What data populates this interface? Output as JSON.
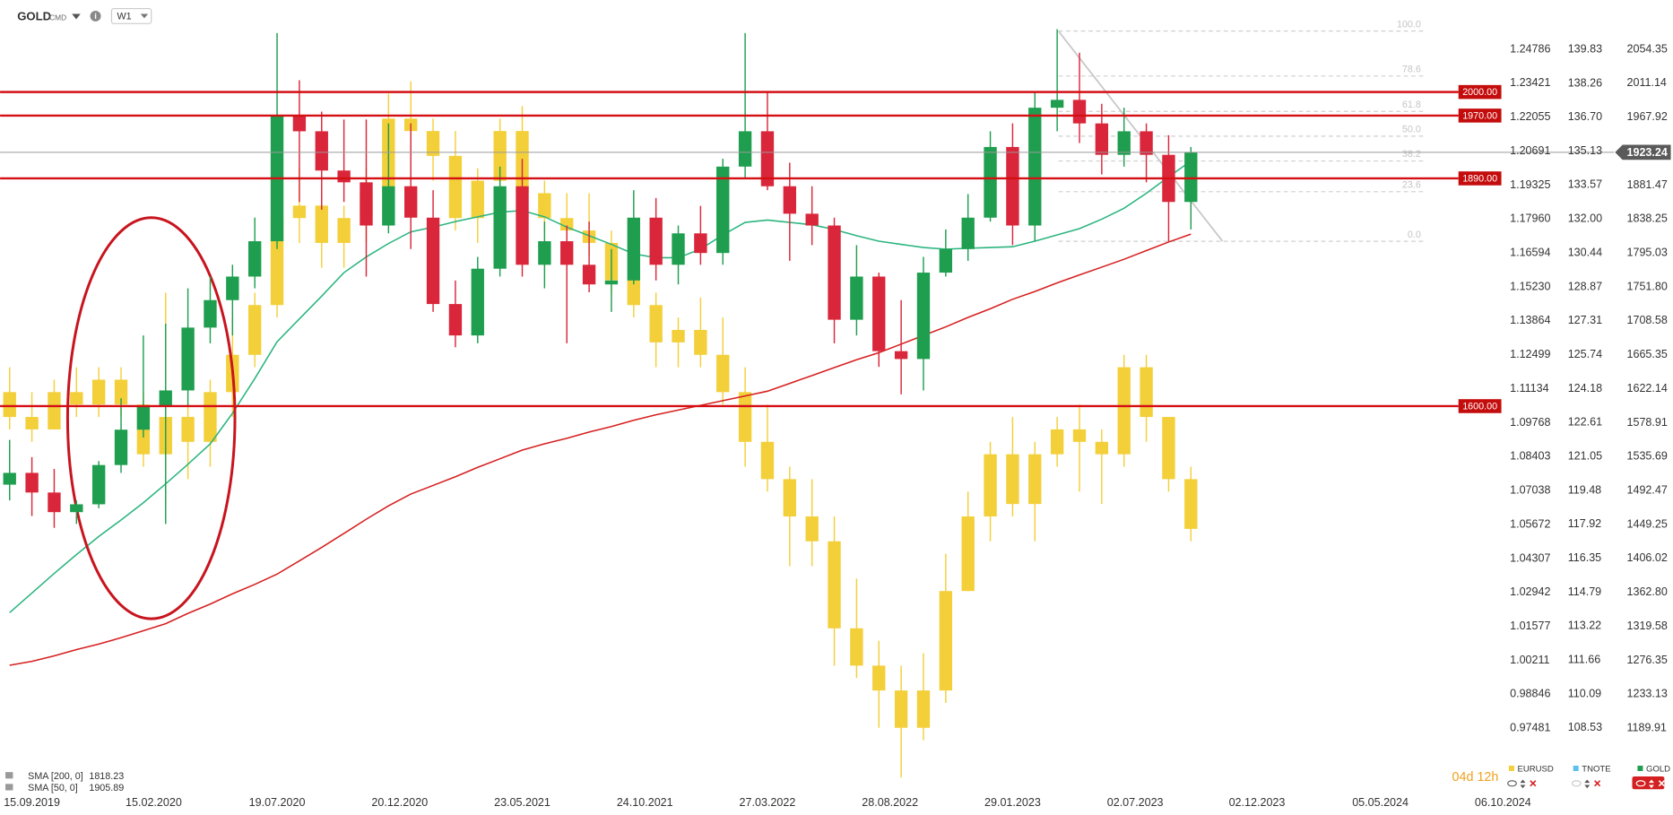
{
  "chart_data": {
    "type": "candlestick",
    "instrument": "GOLD",
    "instrument_type": "CMD",
    "interval": "W1",
    "countdown": "04d 12h",
    "x": [
      "2019-08-18",
      "2019-09-15",
      "2019-10-13",
      "2019-11-10",
      "2019-12-08",
      "2020-01-05",
      "2020-02-02",
      "2020-03-01",
      "2020-03-29",
      "2020-04-26",
      "2020-05-24",
      "2020-06-21",
      "2020-07-19",
      "2020-08-16",
      "2020-09-13",
      "2020-10-11",
      "2020-11-08",
      "2020-12-06",
      "2021-01-03",
      "2021-01-31",
      "2021-02-28",
      "2021-03-28",
      "2021-04-25",
      "2021-05-23",
      "2021-06-20",
      "2021-07-18",
      "2021-08-15",
      "2021-09-12",
      "2021-10-10",
      "2021-11-07",
      "2021-12-05",
      "2022-01-02",
      "2022-01-30",
      "2022-02-27",
      "2022-03-27",
      "2022-04-24",
      "2022-05-22",
      "2022-06-19",
      "2022-07-17",
      "2022-08-14",
      "2022-09-11",
      "2022-10-09",
      "2022-11-06",
      "2022-12-04",
      "2023-01-01",
      "2023-01-29",
      "2023-02-26",
      "2023-03-26",
      "2023-04-23",
      "2023-05-21",
      "2023-06-18",
      "2023-07-16",
      "2023-08-13",
      "2023-09-10"
    ],
    "xlim": [
      "2019-08-06",
      "2024-10-04"
    ],
    "xticks": [
      {
        "value": "2019-09-15",
        "label": "15.09.2019"
      },
      {
        "value": "2020-02-15",
        "label": "15.02.2020"
      },
      {
        "value": "2020-07-19",
        "label": "19.07.2020"
      },
      {
        "value": "2020-12-20",
        "label": "20.12.2020"
      },
      {
        "value": "2021-05-23",
        "label": "23.05.2021"
      },
      {
        "value": "2021-10-24",
        "label": "24.10.2021"
      },
      {
        "value": "2022-03-27",
        "label": "27.03.2022"
      },
      {
        "value": "2022-08-28",
        "label": "28.08.2022"
      },
      {
        "value": "2023-01-29",
        "label": "29.01.2023"
      },
      {
        "value": "2023-07-02",
        "label": "02.07.2023"
      },
      {
        "value": "2023-12-02",
        "label": "02.12.2023"
      },
      {
        "value": "2024-05-05",
        "label": "05.05.2024"
      },
      {
        "value": "2024-10-06",
        "label": "06.10.2024"
      }
    ],
    "series": [
      {
        "name": "EURUSD",
        "color": "#f3cf3a",
        "visible": true,
        "ylim": [
          0.94855,
          1.26554
        ],
        "yticks": [
          1.24786,
          1.23421,
          1.22055,
          1.20691,
          1.19325,
          {
            "value": 1.1796,
            "label": "1.17960"
          },
          1.16594,
          {
            "value": 1.1523,
            "label": "1.15230"
          },
          1.13864,
          1.12499,
          1.11134,
          1.09768,
          1.08403,
          1.07038,
          1.05672,
          1.04307,
          1.02942,
          1.01577,
          1.00211,
          0.98846,
          0.97481
        ],
        "ohlc": [
          [
            1.11,
            1.12,
            1.095,
            1.1
          ],
          [
            1.1,
            1.11,
            1.09,
            1.095
          ],
          [
            1.095,
            1.115,
            1.095,
            1.11
          ],
          [
            1.11,
            1.12,
            1.1,
            1.105
          ],
          [
            1.105,
            1.12,
            1.1,
            1.115
          ],
          [
            1.115,
            1.12,
            1.1,
            1.105
          ],
          [
            1.105,
            1.11,
            1.08,
            1.085
          ],
          [
            1.085,
            1.15,
            1.065,
            1.1
          ],
          [
            1.1,
            1.105,
            1.075,
            1.09
          ],
          [
            1.09,
            1.115,
            1.08,
            1.11
          ],
          [
            1.11,
            1.14,
            1.1,
            1.125
          ],
          [
            1.125,
            1.15,
            1.12,
            1.145
          ],
          [
            1.145,
            1.19,
            1.14,
            1.18
          ],
          [
            1.18,
            1.2,
            1.17,
            1.185
          ],
          [
            1.185,
            1.19,
            1.16,
            1.17
          ],
          [
            1.17,
            1.185,
            1.16,
            1.18
          ],
          [
            1.18,
            1.2,
            1.17,
            1.19
          ],
          [
            1.19,
            1.23,
            1.185,
            1.22
          ],
          [
            1.22,
            1.235,
            1.205,
            1.215
          ],
          [
            1.215,
            1.22,
            1.195,
            1.205
          ],
          [
            1.205,
            1.215,
            1.175,
            1.18
          ],
          [
            1.18,
            1.2,
            1.17,
            1.195
          ],
          [
            1.195,
            1.22,
            1.19,
            1.215
          ],
          [
            1.215,
            1.225,
            1.185,
            1.19
          ],
          [
            1.19,
            1.195,
            1.175,
            1.18
          ],
          [
            1.18,
            1.19,
            1.17,
            1.175
          ],
          [
            1.175,
            1.19,
            1.165,
            1.17
          ],
          [
            1.17,
            1.175,
            1.15,
            1.155
          ],
          [
            1.155,
            1.165,
            1.14,
            1.145
          ],
          [
            1.145,
            1.15,
            1.12,
            1.13
          ],
          [
            1.13,
            1.14,
            1.12,
            1.135
          ],
          [
            1.135,
            1.148,
            1.12,
            1.125
          ],
          [
            1.125,
            1.14,
            1.105,
            1.11
          ],
          [
            1.11,
            1.12,
            1.08,
            1.09
          ],
          [
            1.09,
            1.105,
            1.07,
            1.075
          ],
          [
            1.075,
            1.08,
            1.04,
            1.06
          ],
          [
            1.06,
            1.075,
            1.04,
            1.05
          ],
          [
            1.05,
            1.06,
            1.0,
            1.015
          ],
          [
            1.015,
            1.035,
            0.995,
            1.0
          ],
          [
            1.0,
            1.01,
            0.975,
            0.99
          ],
          [
            0.99,
            1.0,
            0.955,
            0.975
          ],
          [
            0.975,
            1.005,
            0.97,
            0.99
          ],
          [
            0.99,
            1.045,
            0.985,
            1.03
          ],
          [
            1.03,
            1.07,
            1.03,
            1.06
          ],
          [
            1.06,
            1.09,
            1.05,
            1.085
          ],
          [
            1.085,
            1.1,
            1.06,
            1.065
          ],
          [
            1.065,
            1.09,
            1.05,
            1.085
          ],
          [
            1.085,
            1.1,
            1.08,
            1.095
          ],
          [
            1.095,
            1.105,
            1.07,
            1.09
          ],
          [
            1.09,
            1.095,
            1.065,
            1.085
          ],
          [
            1.085,
            1.125,
            1.08,
            1.12
          ],
          [
            1.12,
            1.125,
            1.09,
            1.1
          ],
          [
            1.1,
            1.1,
            1.07,
            1.075
          ],
          [
            1.075,
            1.08,
            1.05,
            1.055
          ]
        ]
      },
      {
        "name": "TNOTE",
        "color": "#5bc0eb",
        "visible": false,
        "ylim": [
          105.5,
          141.86
        ],
        "yticks": [
          139.83,
          138.26,
          {
            "value": 136.7,
            "label": "136.70"
          },
          135.13,
          133.57,
          {
            "value": 132,
            "label": "132.00"
          },
          130.44,
          128.87,
          127.31,
          125.74,
          124.18,
          122.61,
          121.05,
          119.48,
          117.92,
          116.35,
          114.79,
          113.22,
          111.66,
          110.09,
          108.53
        ]
      },
      {
        "name": "GOLD",
        "color": "#1e9e4e",
        "up_color": "#1e9e4e",
        "down_color": "#d9263a",
        "visible": true,
        "ylim": [
          1106.65,
          2110.34
        ],
        "yticks": [
          2054.35,
          2011.14,
          1967.92,
          1881.47,
          1838.25,
          1795.03,
          {
            "value": 1751.8,
            "label": "1751.80"
          },
          1708.58,
          1665.35,
          1622.14,
          1578.91,
          1535.69,
          1492.47,
          1449.25,
          1406.02,
          {
            "value": 1362.8,
            "label": "1362.80"
          },
          1319.58,
          1276.35,
          1233.13,
          1189.91
        ],
        "last_price": 1923.24,
        "ohlc": [
          [
            1500,
            1557,
            1480,
            1515
          ],
          [
            1515,
            1535,
            1460,
            1490
          ],
          [
            1490,
            1520,
            1445,
            1465
          ],
          [
            1465,
            1480,
            1450,
            1475
          ],
          [
            1475,
            1530,
            1470,
            1525
          ],
          [
            1525,
            1610,
            1515,
            1570
          ],
          [
            1570,
            1690,
            1560,
            1600
          ],
          [
            1600,
            1705,
            1450,
            1620
          ],
          [
            1620,
            1750,
            1600,
            1700
          ],
          [
            1700,
            1765,
            1680,
            1735
          ],
          [
            1735,
            1780,
            1690,
            1765
          ],
          [
            1765,
            1840,
            1750,
            1810
          ],
          [
            1810,
            2075,
            1800,
            1970
          ],
          [
            1970,
            2015,
            1860,
            1950
          ],
          [
            1950,
            1975,
            1850,
            1900
          ],
          [
            1900,
            1965,
            1860,
            1885
          ],
          [
            1885,
            1965,
            1765,
            1830
          ],
          [
            1830,
            1960,
            1820,
            1880
          ],
          [
            1880,
            1960,
            1800,
            1840
          ],
          [
            1840,
            1875,
            1720,
            1730
          ],
          [
            1730,
            1760,
            1675,
            1690
          ],
          [
            1690,
            1790,
            1680,
            1775
          ],
          [
            1775,
            1905,
            1765,
            1880
          ],
          [
            1880,
            1915,
            1765,
            1780
          ],
          [
            1780,
            1835,
            1750,
            1810
          ],
          [
            1810,
            1830,
            1680,
            1780
          ],
          [
            1780,
            1835,
            1745,
            1755
          ],
          [
            1755,
            1800,
            1720,
            1760
          ],
          [
            1760,
            1875,
            1755,
            1840
          ],
          [
            1840,
            1865,
            1760,
            1780
          ],
          [
            1780,
            1830,
            1755,
            1820
          ],
          [
            1820,
            1855,
            1780,
            1795
          ],
          [
            1795,
            1915,
            1780,
            1905
          ],
          [
            1905,
            2075,
            1890,
            1950
          ],
          [
            1950,
            2000,
            1875,
            1880
          ],
          [
            1880,
            1910,
            1785,
            1845
          ],
          [
            1845,
            1880,
            1805,
            1830
          ],
          [
            1830,
            1840,
            1680,
            1710
          ],
          [
            1710,
            1805,
            1690,
            1765
          ],
          [
            1765,
            1770,
            1650,
            1670
          ],
          [
            1670,
            1735,
            1615,
            1660
          ],
          [
            1660,
            1790,
            1620,
            1770
          ],
          [
            1770,
            1825,
            1765,
            1800
          ],
          [
            1800,
            1870,
            1785,
            1840
          ],
          [
            1840,
            1950,
            1835,
            1930
          ],
          [
            1930,
            1960,
            1805,
            1830
          ],
          [
            1830,
            2000,
            1810,
            1980
          ],
          [
            1980,
            2080,
            1950,
            1990
          ],
          [
            1990,
            2050,
            1935,
            1960
          ],
          [
            1960,
            1985,
            1895,
            1920
          ],
          [
            1920,
            1980,
            1905,
            1950
          ],
          [
            1950,
            1960,
            1885,
            1920
          ],
          [
            1920,
            1945,
            1810,
            1860
          ],
          [
            1860,
            1930,
            1825,
            1923.24
          ]
        ]
      }
    ],
    "indicators": [
      {
        "name": "SMA [200, 0]",
        "last": 1818.23,
        "color": "#d62020",
        "values": [
          1270,
          1275,
          1282,
          1290,
          1297,
          1305,
          1314,
          1323,
          1336,
          1348,
          1361,
          1373,
          1386,
          1403,
          1420,
          1438,
          1456,
          1473,
          1488,
          1499,
          1510,
          1522,
          1533,
          1544,
          1552,
          1559,
          1567,
          1574,
          1582,
          1589,
          1595,
          1601,
          1607,
          1613,
          1619,
          1629,
          1639,
          1649,
          1659,
          1668,
          1679,
          1690,
          1701,
          1713,
          1724,
          1736,
          1746,
          1757,
          1767,
          1777,
          1787,
          1798,
          1809,
          1819
        ]
      },
      {
        "name": "SMA [50, 0]",
        "last": 1905.89,
        "color": "#2bb57f",
        "values": [
          1337,
          1362,
          1387,
          1411,
          1434,
          1455,
          1477,
          1501,
          1526,
          1552,
          1591,
          1635,
          1682,
          1711,
          1740,
          1770,
          1790,
          1807,
          1822,
          1828,
          1835,
          1841,
          1847,
          1849,
          1841,
          1828,
          1817,
          1806,
          1794,
          1789,
          1789,
          1800,
          1818,
          1834,
          1837,
          1834,
          1831,
          1825,
          1817,
          1810,
          1806,
          1802,
          1800,
          1801,
          1802,
          1803,
          1810,
          1818,
          1826,
          1838,
          1852,
          1871,
          1892,
          1912
        ]
      }
    ],
    "levels": [
      {
        "value": 2000,
        "label": "2000.00"
      },
      {
        "value": 1970,
        "label": "1970.00"
      },
      {
        "value": 1890,
        "label": "1890.00"
      },
      {
        "value": 1600,
        "label": "1600.00"
      }
    ],
    "fibonacci": {
      "range": [
        1809.9,
        2077.6
      ],
      "levels": [
        {
          "value": 100,
          "label": "100.0"
        },
        78.6,
        61.8,
        {
          "value": 50,
          "label": "50.0"
        },
        38.2,
        23.6,
        {
          "value": 0,
          "label": "0.0"
        }
      ]
    }
  }
}
